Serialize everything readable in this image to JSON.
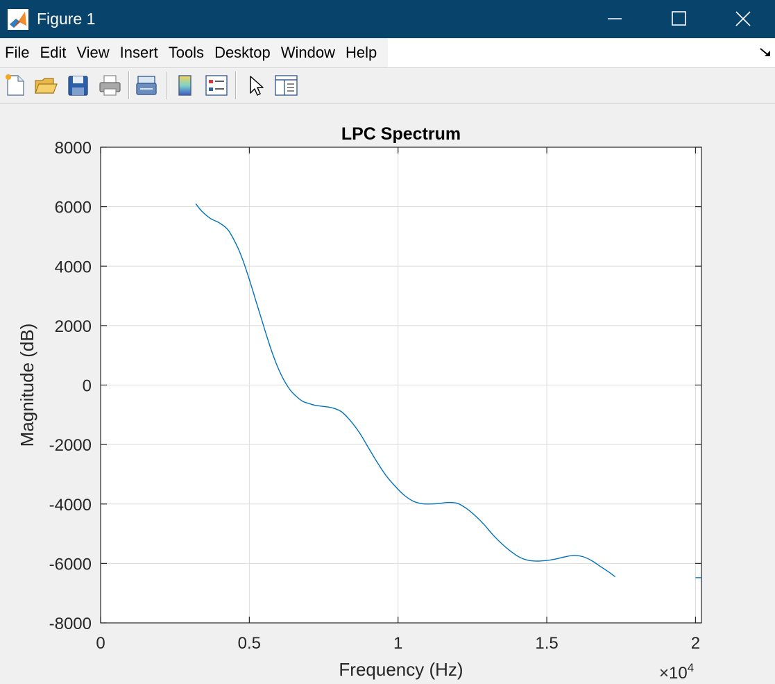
{
  "window": {
    "title": "Figure 1"
  },
  "menu": [
    "File",
    "Edit",
    "View",
    "Insert",
    "Tools",
    "Desktop",
    "Window",
    "Help"
  ],
  "toolbar": {
    "buttons": [
      "new-figure-icon",
      "open-file-icon",
      "save-icon",
      "print-icon",
      "link-plot-icon",
      "insert-colorbar-icon",
      "insert-legend-icon",
      "edit-plot-icon",
      "property-inspector-icon"
    ]
  },
  "colors": {
    "titlebar": "#07436b",
    "line": "#0072bd",
    "grid": "#dcdcdc"
  },
  "chart_data": {
    "type": "line",
    "title": "LPC Spectrum",
    "xlabel": "Frequency (Hz)",
    "ylabel": "Magnitude (dB)",
    "xlim": [
      0,
      20200
    ],
    "ylim": [
      -8000,
      8000
    ],
    "x_exponent_label": "×10",
    "x_exponent_power": "4",
    "xticks": [
      0,
      5000,
      10000,
      15000,
      20000
    ],
    "xtick_labels": [
      "0",
      "0.5",
      "1",
      "1.5",
      "2"
    ],
    "yticks": [
      -8000,
      -6000,
      -4000,
      -2000,
      0,
      2000,
      4000,
      6000,
      8000
    ],
    "ytick_labels": [
      "-8000",
      "-6000",
      "-4000",
      "-2000",
      "0",
      "2000",
      "4000",
      "6000",
      "8000"
    ],
    "grid": true,
    "series": [
      {
        "x": [
          3200,
          3400,
          3700,
          4000,
          4300,
          4600,
          4800,
          5000,
          5200,
          5400,
          5600,
          5800,
          6000,
          6200,
          6400,
          6600,
          6800,
          7000,
          7200,
          7500,
          7800,
          8100,
          8400,
          8700,
          9000,
          9300,
          9600,
          9900,
          10200,
          10500,
          10800,
          11100,
          11400,
          11700,
          12000,
          12300,
          12600,
          12900,
          13200,
          13500,
          13800,
          14100,
          14400,
          14700,
          15000,
          15300,
          15600,
          15900,
          16200,
          16500,
          16800,
          17100,
          17300
        ],
        "y": [
          6100,
          5850,
          5600,
          5450,
          5200,
          4650,
          4150,
          3550,
          2900,
          2250,
          1600,
          1000,
          500,
          100,
          -200,
          -400,
          -550,
          -620,
          -680,
          -720,
          -770,
          -900,
          -1200,
          -1600,
          -2100,
          -2600,
          -3050,
          -3400,
          -3700,
          -3900,
          -3990,
          -4000,
          -3980,
          -3950,
          -3980,
          -4150,
          -4400,
          -4700,
          -5050,
          -5350,
          -5600,
          -5800,
          -5900,
          -5920,
          -5900,
          -5850,
          -5780,
          -5730,
          -5770,
          -5900,
          -6100,
          -6300,
          -6450
        ]
      },
      {
        "x": [
          20000,
          20200
        ],
        "y": [
          -6480,
          -6480
        ]
      }
    ]
  }
}
